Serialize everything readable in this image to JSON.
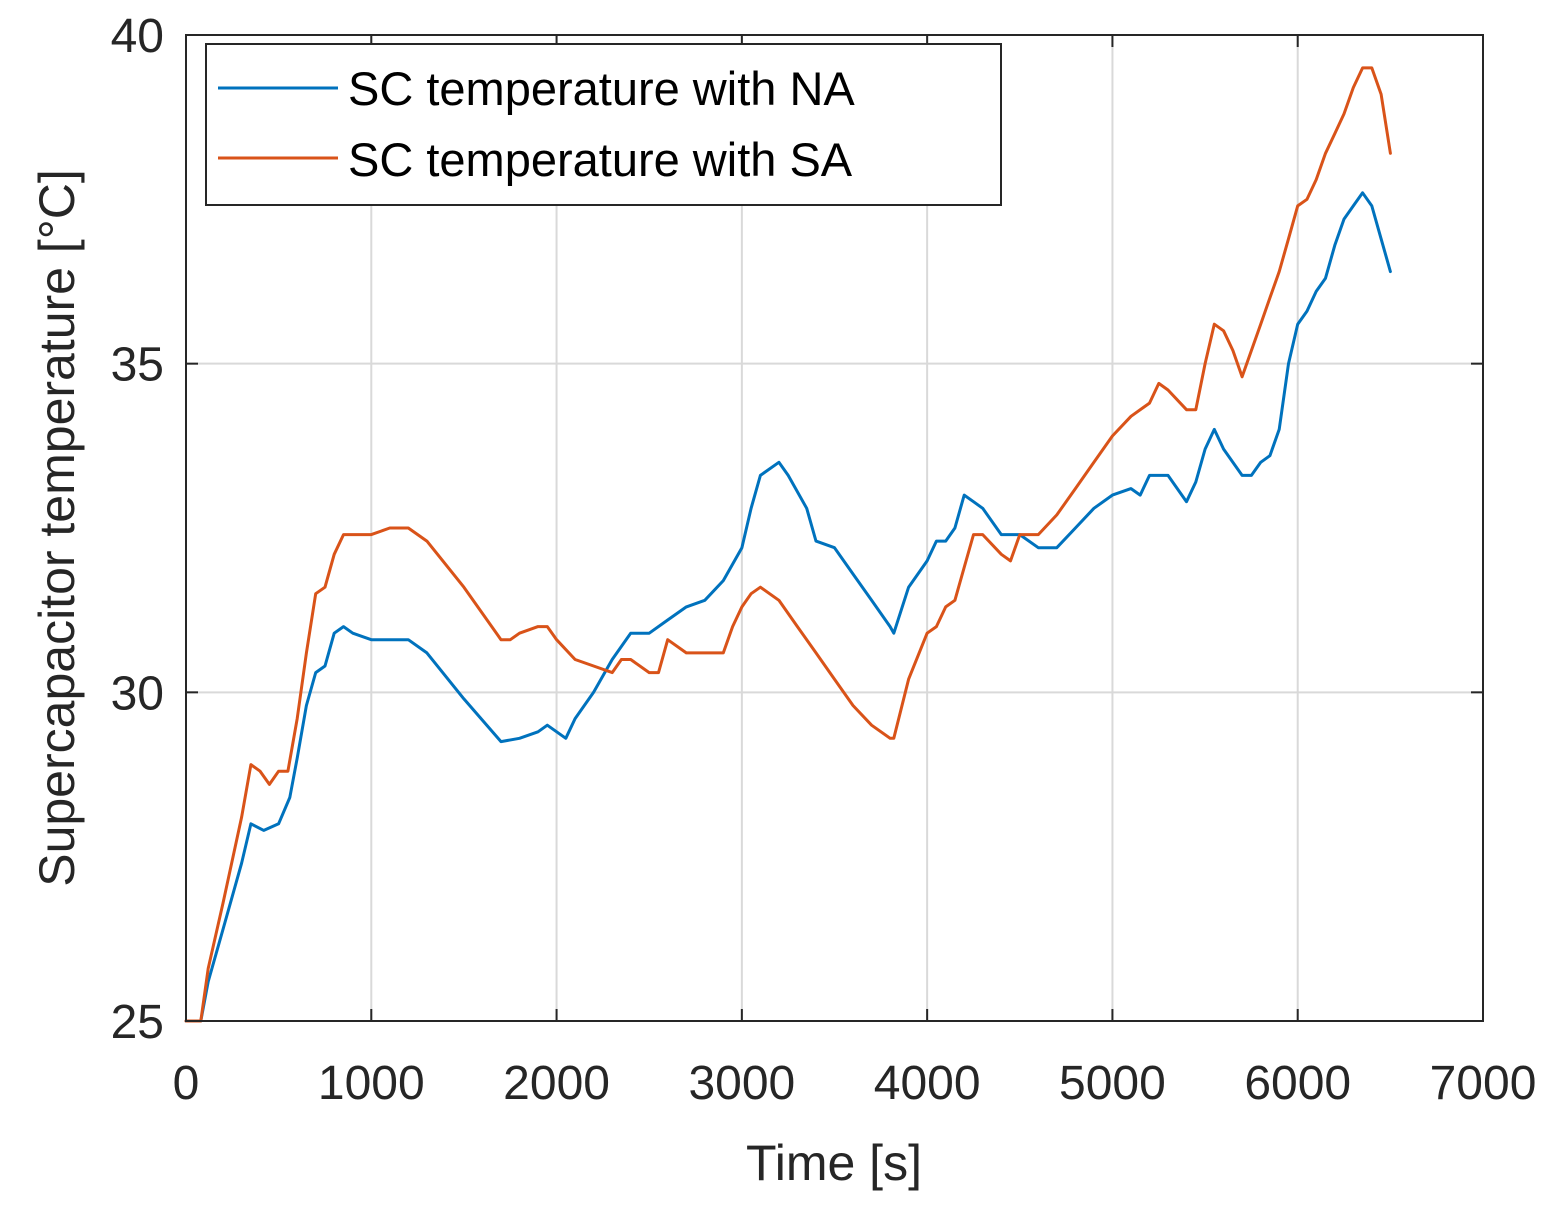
{
  "chart_data": {
    "type": "line",
    "title": "",
    "xlabel": "Time [s]",
    "ylabel": "Supercapacitor temperature [°C]",
    "xlim": [
      0,
      7000
    ],
    "ylim": [
      25,
      40
    ],
    "xticks": [
      0,
      1000,
      2000,
      3000,
      4000,
      5000,
      6000,
      7000
    ],
    "yticks": [
      25,
      30,
      35,
      40
    ],
    "xtick_labels": [
      "0",
      "1000",
      "2000",
      "3000",
      "4000",
      "5000",
      "6000",
      "7000"
    ],
    "ytick_labels": [
      "25",
      "30",
      "35",
      "40"
    ],
    "grid": true,
    "legend_position": "top-left",
    "series": [
      {
        "name": "SC temperature with NA",
        "color": "#0072BD",
        "x": [
          0,
          80,
          120,
          200,
          300,
          350,
          420,
          500,
          560,
          600,
          650,
          700,
          750,
          800,
          850,
          900,
          1000,
          1100,
          1200,
          1300,
          1500,
          1700,
          1800,
          1900,
          1950,
          2050,
          2100,
          2200,
          2300,
          2400,
          2500,
          2600,
          2700,
          2800,
          2900,
          3000,
          3050,
          3100,
          3200,
          3250,
          3350,
          3400,
          3500,
          3600,
          3700,
          3800,
          3820,
          3900,
          4000,
          4050,
          4100,
          4150,
          4200,
          4250,
          4300,
          4400,
          4500,
          4600,
          4700,
          4800,
          4900,
          5000,
          5100,
          5150,
          5200,
          5250,
          5300,
          5400,
          5450,
          5500,
          5550,
          5600,
          5700,
          5750,
          5800,
          5850,
          5900,
          5950,
          6000,
          6050,
          6100,
          6150,
          6200,
          6250,
          6300,
          6350,
          6400,
          6450,
          6500
        ],
        "y": [
          25.0,
          25.0,
          25.6,
          26.4,
          27.4,
          28.0,
          27.9,
          28.0,
          28.4,
          29.0,
          29.8,
          30.3,
          30.4,
          30.9,
          31.0,
          30.9,
          30.8,
          30.8,
          30.8,
          30.6,
          29.9,
          29.25,
          29.3,
          29.4,
          29.5,
          29.3,
          29.6,
          30.0,
          30.5,
          30.9,
          30.9,
          31.1,
          31.3,
          31.4,
          31.7,
          32.2,
          32.8,
          33.3,
          33.5,
          33.3,
          32.8,
          32.3,
          32.2,
          31.8,
          31.4,
          31.0,
          30.9,
          31.6,
          32.0,
          32.3,
          32.3,
          32.5,
          33.0,
          32.9,
          32.8,
          32.4,
          32.4,
          32.2,
          32.2,
          32.5,
          32.8,
          33.0,
          33.1,
          33.0,
          33.3,
          33.3,
          33.3,
          32.9,
          33.2,
          33.7,
          34.0,
          33.7,
          33.3,
          33.3,
          33.5,
          33.6,
          34.0,
          35.0,
          35.6,
          35.8,
          36.1,
          36.3,
          36.8,
          37.2,
          37.4,
          37.6,
          37.4,
          36.9,
          36.4
        ]
      },
      {
        "name": "SC temperature with SA",
        "color": "#D95319",
        "x": [
          0,
          80,
          120,
          200,
          300,
          350,
          400,
          450,
          500,
          550,
          600,
          650,
          700,
          750,
          800,
          850,
          900,
          1000,
          1100,
          1200,
          1300,
          1500,
          1700,
          1750,
          1800,
          1900,
          1950,
          2000,
          2100,
          2200,
          2300,
          2350,
          2400,
          2500,
          2550,
          2600,
          2700,
          2800,
          2900,
          2950,
          3000,
          3050,
          3100,
          3200,
          3300,
          3400,
          3500,
          3600,
          3700,
          3800,
          3820,
          3900,
          4000,
          4050,
          4100,
          4150,
          4200,
          4250,
          4300,
          4400,
          4450,
          4500,
          4600,
          4700,
          4800,
          4900,
          5000,
          5100,
          5200,
          5250,
          5300,
          5400,
          5450,
          5500,
          5550,
          5600,
          5650,
          5700,
          5800,
          5850,
          5900,
          5950,
          6000,
          6050,
          6100,
          6150,
          6200,
          6250,
          6300,
          6350,
          6400,
          6450,
          6500
        ],
        "y": [
          25.0,
          25.0,
          25.8,
          26.8,
          28.1,
          28.9,
          28.8,
          28.6,
          28.8,
          28.8,
          29.6,
          30.6,
          31.5,
          31.6,
          32.1,
          32.4,
          32.4,
          32.4,
          32.5,
          32.5,
          32.3,
          31.6,
          30.8,
          30.8,
          30.9,
          31.0,
          31.0,
          30.8,
          30.5,
          30.4,
          30.3,
          30.5,
          30.5,
          30.3,
          30.3,
          30.8,
          30.6,
          30.6,
          30.6,
          31.0,
          31.3,
          31.5,
          31.6,
          31.4,
          31.0,
          30.6,
          30.2,
          29.8,
          29.5,
          29.3,
          29.3,
          30.2,
          30.9,
          31.0,
          31.3,
          31.4,
          31.9,
          32.4,
          32.4,
          32.1,
          32.0,
          32.4,
          32.4,
          32.7,
          33.1,
          33.5,
          33.9,
          34.2,
          34.4,
          34.7,
          34.6,
          34.3,
          34.3,
          35.0,
          35.6,
          35.5,
          35.2,
          34.8,
          35.6,
          36.0,
          36.4,
          36.9,
          37.4,
          37.5,
          37.8,
          38.2,
          38.5,
          38.8,
          39.2,
          39.5,
          39.5,
          39.1,
          38.2
        ]
      }
    ]
  }
}
